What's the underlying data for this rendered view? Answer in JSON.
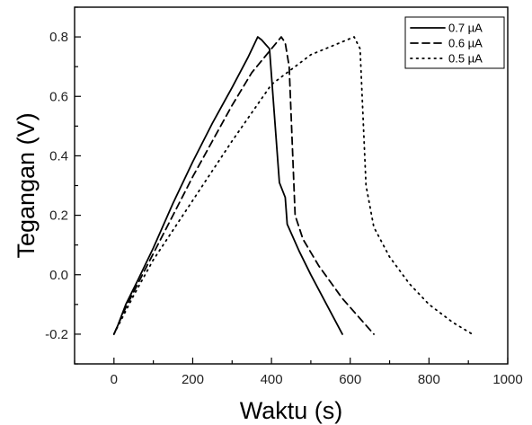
{
  "chart_data": {
    "type": "line",
    "title": "",
    "xlabel": "Waktu (s)",
    "ylabel": "Tegangan (V)",
    "xlim": [
      -100,
      1000
    ],
    "ylim": [
      -0.3,
      0.9
    ],
    "x_ticks": [
      0,
      200,
      400,
      600,
      800,
      1000
    ],
    "y_ticks": [
      -0.2,
      0.0,
      0.2,
      0.4,
      0.6,
      0.8
    ],
    "x_tick_labels": [
      "0",
      "200",
      "400",
      "600",
      "800",
      "1000"
    ],
    "y_tick_labels": [
      "-0.2",
      "0.0",
      "0.2",
      "0.4",
      "0.6",
      "0.8"
    ],
    "grid": false,
    "legend_position": "top-right",
    "series": [
      {
        "name": "0.7 µA",
        "dash": "solid",
        "color": "#000000",
        "points": [
          [
            0,
            -0.2
          ],
          [
            10,
            -0.17
          ],
          [
            30,
            -0.1
          ],
          [
            60,
            -0.02
          ],
          [
            100,
            0.09
          ],
          [
            150,
            0.24
          ],
          [
            200,
            0.38
          ],
          [
            250,
            0.51
          ],
          [
            300,
            0.63
          ],
          [
            340,
            0.73
          ],
          [
            365,
            0.8
          ],
          [
            375,
            0.79
          ],
          [
            395,
            0.76
          ],
          [
            420,
            0.31
          ],
          [
            435,
            0.26
          ],
          [
            440,
            0.17
          ],
          [
            470,
            0.08
          ],
          [
            500,
            0.0
          ],
          [
            540,
            -0.1
          ],
          [
            580,
            -0.2
          ]
        ]
      },
      {
        "name": "0.6 µA",
        "dash": "dashed",
        "color": "#000000",
        "points": [
          [
            0,
            -0.2
          ],
          [
            30,
            -0.11
          ],
          [
            80,
            0.02
          ],
          [
            150,
            0.2
          ],
          [
            200,
            0.33
          ],
          [
            250,
            0.45
          ],
          [
            300,
            0.57
          ],
          [
            350,
            0.68
          ],
          [
            400,
            0.76
          ],
          [
            425,
            0.8
          ],
          [
            435,
            0.78
          ],
          [
            445,
            0.7
          ],
          [
            460,
            0.2
          ],
          [
            480,
            0.12
          ],
          [
            520,
            0.03
          ],
          [
            580,
            -0.08
          ],
          [
            620,
            -0.14
          ],
          [
            660,
            -0.2
          ]
        ]
      },
      {
        "name": "0.5 µA",
        "dash": "dotted",
        "color": "#000000",
        "points": [
          [
            0,
            -0.2
          ],
          [
            50,
            -0.07
          ],
          [
            100,
            0.05
          ],
          [
            200,
            0.25
          ],
          [
            300,
            0.45
          ],
          [
            400,
            0.64
          ],
          [
            500,
            0.74
          ],
          [
            610,
            0.8
          ],
          [
            625,
            0.76
          ],
          [
            640,
            0.3
          ],
          [
            660,
            0.16
          ],
          [
            700,
            0.06
          ],
          [
            750,
            -0.03
          ],
          [
            800,
            -0.1
          ],
          [
            860,
            -0.16
          ],
          [
            910,
            -0.2
          ]
        ]
      }
    ]
  }
}
